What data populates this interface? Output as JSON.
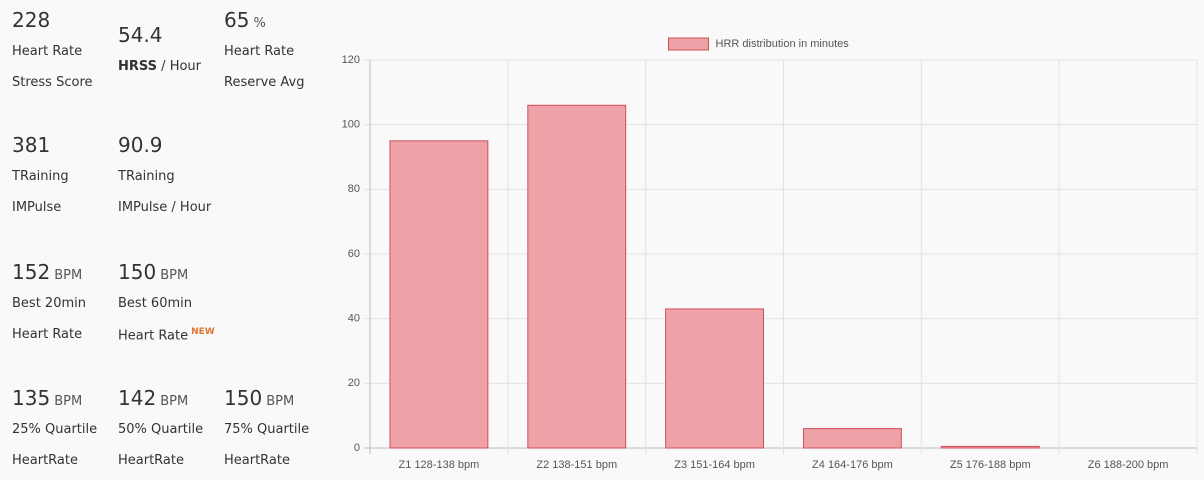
{
  "stats": [
    {
      "value": 228,
      "lines": [
        "Heart Rate",
        "Stress Score"
      ]
    },
    {
      "value": 54.4,
      "lines": [
        {
          "bold": "HRSS",
          "text": " / Hour"
        }
      ]
    },
    {
      "value": 65,
      "unit": "%",
      "lines": [
        "Heart Rate",
        "Reserve Avg"
      ]
    },
    {
      "value": 381,
      "lines": [
        "TRaining",
        "IMPulse"
      ]
    },
    {
      "value": 90.9,
      "lines": [
        "TRaining",
        "IMPulse / Hour"
      ]
    },
    {
      "value": 152,
      "unit": "BPM",
      "lines": [
        "Best 20min",
        "Heart Rate"
      ]
    },
    {
      "value": 150,
      "unit": "BPM",
      "lines": [
        "Best 60min",
        "Heart Rate"
      ],
      "badge": "NEW"
    },
    {
      "value": 135,
      "unit": "BPM",
      "lines": [
        "25% Quartile",
        "HeartRate"
      ]
    },
    {
      "value": 142,
      "unit": "BPM",
      "lines": [
        "50% Quartile",
        "HeartRate"
      ]
    },
    {
      "value": 150,
      "unit": "BPM",
      "lines": [
        "75% Quartile",
        "HeartRate"
      ]
    }
  ],
  "chart_data": {
    "type": "bar",
    "categories": [
      "Z1 128-138 bpm",
      "Z2 138-151 bpm",
      "Z3 151-164 bpm",
      "Z4 164-176 bpm",
      "Z5 176-188 bpm",
      "Z6 188-200 bpm"
    ],
    "series": [
      {
        "name": "HRR distribution in minutes",
        "color": "#eea2a8",
        "border": "#d0505c",
        "values": [
          95,
          106,
          43,
          6,
          0.5,
          0
        ]
      }
    ],
    "ylim": [
      0,
      120
    ],
    "yticks": [
      0,
      20,
      40,
      60,
      80,
      100,
      120
    ],
    "grid": true,
    "legend": "top"
  }
}
